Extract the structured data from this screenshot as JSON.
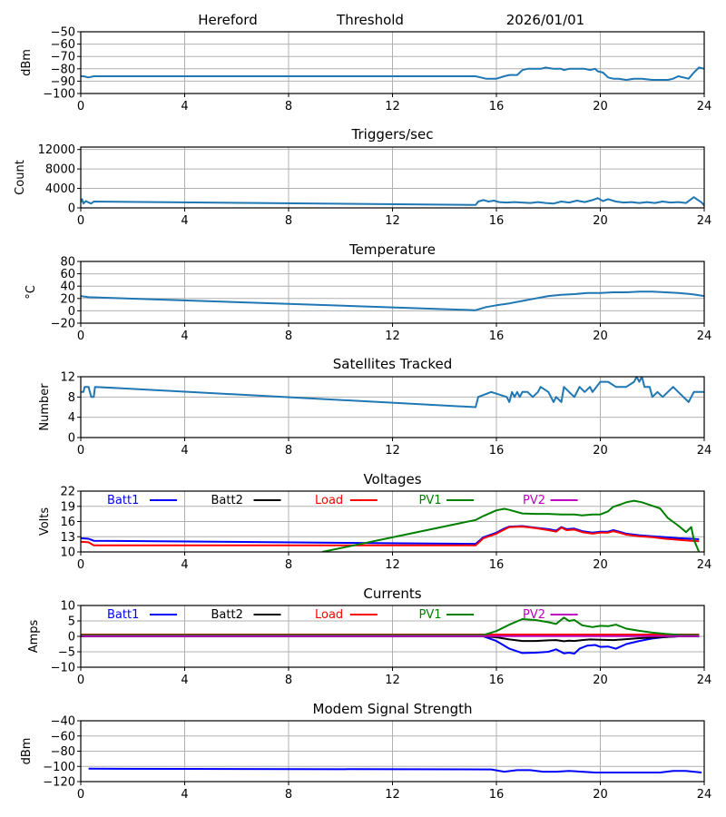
{
  "header": {
    "station": "Hereford",
    "mode": "Threshold",
    "date": "2026/01/01"
  },
  "chart_data": [
    {
      "id": "threshold",
      "type": "line",
      "title": "",
      "xlabel": "",
      "ylabel": "dBm",
      "xlim": [
        0,
        24
      ],
      "ylim": [
        -100,
        -50
      ],
      "xticks": [
        0,
        4,
        8,
        12,
        16,
        20,
        24
      ],
      "yticks": [
        -100,
        -90,
        -80,
        -70,
        -60,
        -50
      ],
      "ytick_labels": [
        "−100",
        "−90",
        "−80",
        "−70",
        "−60",
        "−50"
      ],
      "grid": true,
      "series": [
        {
          "name": "threshold",
          "color": "#1f77b4",
          "x": [
            0,
            0.1,
            0.3,
            0.5,
            15.2,
            15.4,
            15.6,
            15.8,
            16.0,
            16.3,
            16.5,
            16.8,
            17.0,
            17.2,
            17.5,
            17.7,
            17.9,
            18.2,
            18.5,
            18.6,
            18.8,
            19.0,
            19.2,
            19.4,
            19.6,
            19.8,
            19.9,
            20.1,
            20.3,
            20.5,
            20.7,
            21.0,
            21.3,
            21.6,
            22.0,
            22.3,
            22.6,
            22.8,
            23.0,
            23.2,
            23.4,
            23.6,
            23.8,
            24.0
          ],
          "y": [
            -86,
            -86,
            -87,
            -86,
            -86,
            -87,
            -88,
            -88,
            -88,
            -86,
            -85,
            -85,
            -81,
            -80,
            -80,
            -80,
            -79,
            -80,
            -80,
            -81,
            -80,
            -80,
            -80,
            -80,
            -81,
            -80,
            -82,
            -83,
            -87,
            -88,
            -88,
            -89,
            -88,
            -88,
            -89,
            -89,
            -89,
            -88,
            -86,
            -87,
            -88,
            -83,
            -79,
            -80
          ]
        }
      ]
    },
    {
      "id": "triggers",
      "type": "line",
      "title": "Triggers/sec",
      "xlabel": "",
      "ylabel": "Count",
      "xlim": [
        0,
        24
      ],
      "ylim": [
        0,
        12500
      ],
      "xticks": [
        0,
        4,
        8,
        12,
        16,
        20,
        24
      ],
      "yticks": [
        0,
        4000,
        8000,
        12000
      ],
      "ytick_labels": [
        "0",
        "4000",
        "8000",
        "12000"
      ],
      "grid": true,
      "series": [
        {
          "name": "triggers",
          "color": "#1f77b4",
          "x": [
            0,
            0.05,
            0.1,
            0.2,
            0.3,
            0.4,
            0.5,
            15.2,
            15.3,
            15.5,
            15.7,
            15.9,
            16.1,
            16.4,
            16.7,
            17.0,
            17.3,
            17.6,
            17.9,
            18.2,
            18.5,
            18.8,
            19.1,
            19.4,
            19.7,
            19.9,
            20.1,
            20.3,
            20.6,
            20.9,
            21.2,
            21.5,
            21.8,
            22.1,
            22.4,
            22.7,
            23.0,
            23.3,
            23.6,
            23.9,
            24.0
          ],
          "y": [
            1200,
            1800,
            900,
            1400,
            1100,
            900,
            1300,
            600,
            1300,
            1600,
            1300,
            1500,
            1200,
            1100,
            1200,
            1100,
            1000,
            1200,
            1000,
            900,
            1300,
            1100,
            1500,
            1200,
            1600,
            2000,
            1400,
            1800,
            1300,
            1100,
            1200,
            1000,
            1200,
            1000,
            1300,
            1100,
            1200,
            1000,
            2200,
            1100,
            500
          ]
        }
      ]
    },
    {
      "id": "temperature",
      "type": "line",
      "title": "Temperature",
      "xlabel": "",
      "ylabel": "°C",
      "xlim": [
        0,
        24
      ],
      "ylim": [
        -20,
        80
      ],
      "xticks": [
        0,
        4,
        8,
        12,
        16,
        20,
        24
      ],
      "yticks": [
        -20,
        0,
        20,
        40,
        60,
        80
      ],
      "ytick_labels": [
        "−20",
        "0",
        "20",
        "40",
        "60",
        "80"
      ],
      "grid": true,
      "series": [
        {
          "name": "temperature",
          "color": "#1f77b4",
          "x": [
            0,
            0.3,
            15.2,
            15.6,
            16.0,
            16.5,
            17.0,
            17.5,
            18.0,
            18.5,
            19.0,
            19.5,
            20.0,
            20.5,
            21.0,
            21.5,
            22.0,
            22.5,
            23.0,
            23.5,
            24.0
          ],
          "y": [
            24,
            22,
            1,
            6,
            9,
            12,
            16,
            20,
            24,
            26,
            27,
            29,
            29,
            30,
            30,
            31,
            31,
            30,
            29,
            27,
            24
          ]
        }
      ]
    },
    {
      "id": "satellites",
      "type": "line",
      "title": "Satellites Tracked",
      "xlabel": "",
      "ylabel": "Number",
      "xlim": [
        0,
        24
      ],
      "ylim": [
        0,
        12
      ],
      "xticks": [
        0,
        4,
        8,
        12,
        16,
        20,
        24
      ],
      "yticks": [
        0,
        4,
        8,
        12
      ],
      "ytick_labels": [
        "0",
        "4",
        "8",
        "12"
      ],
      "grid": true,
      "series": [
        {
          "name": "satellites",
          "color": "#1f77b4",
          "x": [
            0,
            0.1,
            0.15,
            0.3,
            0.4,
            0.5,
            0.55,
            15.2,
            15.3,
            15.8,
            16.4,
            16.5,
            16.6,
            16.7,
            16.8,
            16.9,
            17.0,
            17.2,
            17.4,
            17.6,
            17.7,
            18.0,
            18.1,
            18.2,
            18.3,
            18.5,
            18.6,
            18.8,
            19.0,
            19.2,
            19.4,
            19.6,
            19.7,
            20.0,
            20.3,
            20.6,
            20.8,
            21.0,
            21.3,
            21.4,
            21.5,
            21.6,
            21.7,
            21.9,
            22.0,
            22.2,
            22.4,
            22.6,
            22.8,
            23.0,
            23.2,
            23.4,
            23.6,
            23.8,
            24.0
          ],
          "y": [
            9,
            9,
            10,
            10,
            8,
            8,
            10,
            6,
            8,
            9,
            8,
            7,
            9,
            8,
            9,
            8,
            9,
            9,
            8,
            9,
            10,
            9,
            8,
            7,
            8,
            7,
            10,
            9,
            8,
            10,
            9,
            10,
            9,
            11,
            11,
            10,
            10,
            10,
            11,
            12,
            11,
            12,
            10,
            10,
            8,
            9,
            8,
            9,
            10,
            9,
            8,
            7,
            9,
            9,
            9
          ]
        }
      ]
    },
    {
      "id": "voltages",
      "type": "line",
      "title": "Voltages",
      "xlabel": "",
      "ylabel": "Volts",
      "xlim": [
        0,
        24
      ],
      "ylim": [
        10,
        22
      ],
      "xticks": [
        0,
        4,
        8,
        12,
        16,
        20,
        24
      ],
      "yticks": [
        10,
        13,
        16,
        19,
        22
      ],
      "ytick_labels": [
        "10",
        "13",
        "16",
        "19",
        "22"
      ],
      "grid": true,
      "legend": "top (inside, horizontal)",
      "series": [
        {
          "name": "Batt1",
          "color": "#0000ff",
          "x": [
            0,
            0.3,
            0.5,
            15.2,
            15.5,
            16.0,
            16.3,
            16.5,
            17.0,
            17.5,
            18.0,
            18.3,
            18.5,
            18.7,
            19.0,
            19.3,
            19.7,
            20.0,
            20.3,
            20.5,
            20.8,
            21.0,
            21.5,
            22.0,
            22.5,
            23.0,
            23.5,
            23.8
          ],
          "y": [
            12.7,
            12.6,
            12.2,
            11.6,
            12.9,
            13.8,
            14.6,
            15.0,
            15.1,
            14.8,
            14.5,
            14.2,
            14.9,
            14.5,
            14.6,
            14.1,
            13.8,
            14.0,
            14.0,
            14.3,
            13.9,
            13.6,
            13.3,
            13.1,
            12.9,
            12.7,
            12.6,
            12.5
          ]
        },
        {
          "name": "Batt2",
          "color": "#000000",
          "x": [],
          "y": []
        },
        {
          "name": "Load",
          "color": "#ff0000",
          "x": [
            0,
            0.3,
            0.5,
            15.2,
            15.5,
            16.0,
            16.3,
            16.5,
            17.0,
            17.5,
            18.0,
            18.3,
            18.5,
            18.7,
            19.0,
            19.3,
            19.7,
            20.0,
            20.3,
            20.5,
            20.8,
            21.0,
            21.5,
            22.0,
            22.5,
            23.0,
            23.5,
            23.8
          ],
          "y": [
            12.0,
            11.9,
            11.3,
            11.3,
            12.7,
            13.6,
            14.4,
            14.9,
            15.0,
            14.7,
            14.3,
            14.0,
            14.8,
            14.3,
            14.4,
            13.9,
            13.6,
            13.8,
            13.8,
            14.1,
            13.7,
            13.4,
            13.1,
            12.9,
            12.6,
            12.4,
            12.2,
            12.1
          ]
        },
        {
          "name": "PV1",
          "color": "#008000",
          "x": [
            9.3,
            15.2,
            15.5,
            16.0,
            16.3,
            16.5,
            17.0,
            17.5,
            18.0,
            18.5,
            19.0,
            19.3,
            19.7,
            20.0,
            20.3,
            20.5,
            20.8,
            21.0,
            21.3,
            21.6,
            22.0,
            22.3,
            22.6,
            23.0,
            23.3,
            23.5,
            23.6,
            23.8
          ],
          "y": [
            10.0,
            16.3,
            17.1,
            18.2,
            18.5,
            18.3,
            17.6,
            17.5,
            17.5,
            17.4,
            17.4,
            17.2,
            17.4,
            17.4,
            18.0,
            18.9,
            19.4,
            19.8,
            20.1,
            19.8,
            19.1,
            18.6,
            16.7,
            15.2,
            13.9,
            14.9,
            12.4,
            10.0
          ]
        },
        {
          "name": "PV2",
          "color": "#bf00bf",
          "x": [],
          "y": []
        }
      ]
    },
    {
      "id": "currents",
      "type": "line",
      "title": "Currents",
      "xlabel": "",
      "ylabel": "Amps",
      "xlim": [
        0,
        24
      ],
      "ylim": [
        -10,
        10
      ],
      "xticks": [
        0,
        4,
        8,
        12,
        16,
        20,
        24
      ],
      "yticks": [
        -10,
        -5,
        0,
        5,
        10
      ],
      "ytick_labels": [
        "−10",
        "−5",
        "0",
        "5",
        "10"
      ],
      "grid": true,
      "legend": "top (inside, horizontal)",
      "series": [
        {
          "name": "Batt1",
          "color": "#0000ff",
          "x": [
            0,
            15.5,
            16.0,
            16.5,
            17.0,
            17.5,
            18.0,
            18.3,
            18.6,
            18.8,
            19.0,
            19.2,
            19.5,
            19.8,
            20.0,
            20.3,
            20.6,
            21.0,
            21.5,
            22.0,
            22.5,
            23.0,
            23.8
          ],
          "y": [
            0,
            0,
            -1.5,
            -4.0,
            -5.4,
            -5.3,
            -5.0,
            -4.2,
            -5.5,
            -5.3,
            -5.6,
            -4.0,
            -3.0,
            -2.8,
            -3.4,
            -3.3,
            -4.0,
            -2.5,
            -1.5,
            -0.7,
            -0.2,
            0,
            0
          ]
        },
        {
          "name": "Batt2",
          "color": "#000000",
          "x": [
            0,
            15.5,
            16.0,
            16.5,
            17.0,
            17.5,
            18.0,
            18.3,
            18.6,
            18.8,
            19.0,
            19.3,
            19.6,
            20.0,
            20.5,
            21.0,
            21.5,
            22.0,
            22.5,
            23.0,
            23.8
          ],
          "y": [
            0,
            0,
            -0.3,
            -1.0,
            -1.5,
            -1.5,
            -1.3,
            -1.2,
            -1.6,
            -1.4,
            -1.5,
            -1.2,
            -1.0,
            -1.1,
            -1.2,
            -0.9,
            -0.6,
            -0.4,
            -0.2,
            0,
            0
          ]
        },
        {
          "name": "Load",
          "color": "#ff0000",
          "x": [
            0,
            23.8
          ],
          "y": [
            0.6,
            0.6
          ]
        },
        {
          "name": "PV1",
          "color": "#008000",
          "x": [
            0,
            15.5,
            16.0,
            16.5,
            17.0,
            17.5,
            18.0,
            18.3,
            18.6,
            18.8,
            19.0,
            19.3,
            19.7,
            20.0,
            20.3,
            20.6,
            21.0,
            21.5,
            22.0,
            22.5,
            23.0,
            23.8
          ],
          "y": [
            0.4,
            0.4,
            1.7,
            3.8,
            5.6,
            5.3,
            4.6,
            4.0,
            6.1,
            5.0,
            5.3,
            3.6,
            3.0,
            3.4,
            3.3,
            3.8,
            2.5,
            1.8,
            1.2,
            0.8,
            0.5,
            0.4
          ]
        },
        {
          "name": "PV2",
          "color": "#bf00bf",
          "x": [
            0,
            23.8
          ],
          "y": [
            0.1,
            0.1
          ]
        }
      ]
    },
    {
      "id": "modem",
      "type": "line",
      "title": "Modem Signal Strength",
      "xlabel": "",
      "ylabel": "dBm",
      "xlim": [
        0,
        24
      ],
      "ylim": [
        -120,
        -40
      ],
      "xticks": [
        0,
        4,
        8,
        12,
        16,
        20,
        24
      ],
      "yticks": [
        -120,
        -100,
        -80,
        -60,
        -40
      ],
      "ytick_labels": [
        "−120",
        "−100",
        "−80",
        "−60",
        "−40"
      ],
      "grid": true,
      "series": [
        {
          "name": "modem",
          "color": "#0000ff",
          "x": [
            0.3,
            15.8,
            16.3,
            16.8,
            17.3,
            17.8,
            18.3,
            18.8,
            19.3,
            19.8,
            20.3,
            20.8,
            21.3,
            21.8,
            22.3,
            22.8,
            23.3,
            23.9
          ],
          "y": [
            -103,
            -104,
            -107,
            -105,
            -105,
            -107,
            -107,
            -106,
            -107,
            -108,
            -108,
            -108,
            -108,
            -108,
            -108,
            -106,
            -106,
            -108
          ]
        }
      ]
    }
  ]
}
